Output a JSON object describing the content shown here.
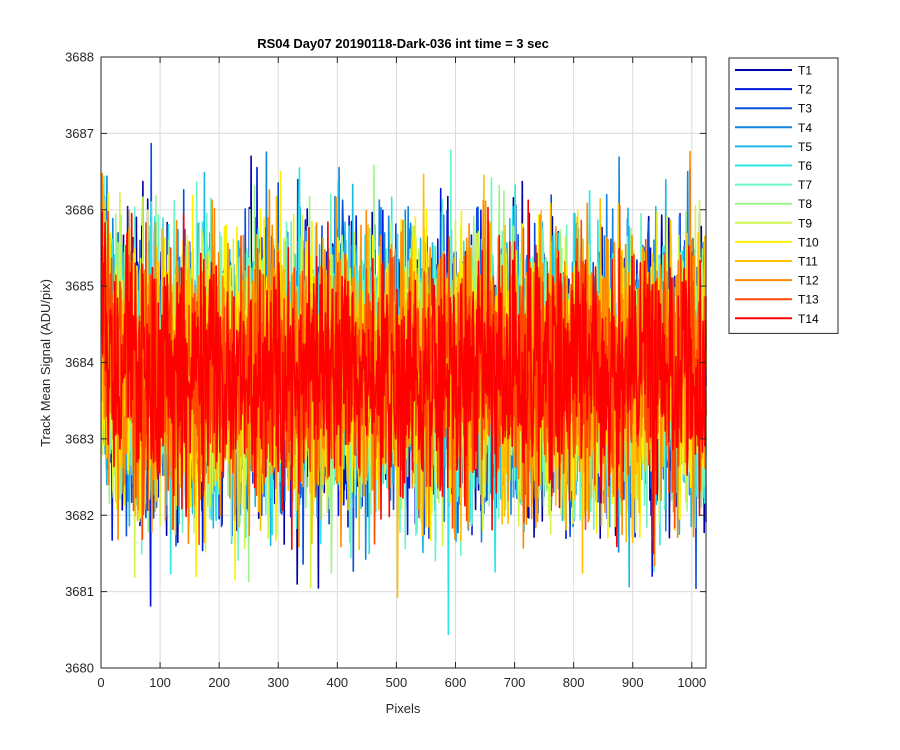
{
  "chart_data": {
    "type": "line",
    "title": "RS04 Day07 20190118-Dark-036 int time = 3 sec",
    "xlabel": "Pixels",
    "ylabel": "Track Mean Signal (ADU/pix)",
    "xlim": [
      0,
      1024
    ],
    "ylim": [
      3680,
      3688
    ],
    "xticks": [
      0,
      100,
      200,
      300,
      400,
      500,
      600,
      700,
      800,
      900,
      1000
    ],
    "yticks": [
      3680,
      3681,
      3682,
      3683,
      3684,
      3685,
      3686,
      3687,
      3688
    ],
    "grid": true,
    "legend_position": "outside-top-right",
    "x_range": [
      1,
      1024
    ],
    "series_mean": 3683.85,
    "series_spread": 0.9,
    "series": [
      {
        "name": "T1",
        "color": "#0000a6"
      },
      {
        "name": "T2",
        "color": "#0018e0"
      },
      {
        "name": "T3",
        "color": "#0a4ede"
      },
      {
        "name": "T4",
        "color": "#1084de"
      },
      {
        "name": "T5",
        "color": "#18b8e8"
      },
      {
        "name": "T6",
        "color": "#2be6e6"
      },
      {
        "name": "T7",
        "color": "#6af5c8"
      },
      {
        "name": "T8",
        "color": "#9df58a"
      },
      {
        "name": "T9",
        "color": "#d0f548"
      },
      {
        "name": "T10",
        "color": "#fff000"
      },
      {
        "name": "T11",
        "color": "#ffc000"
      },
      {
        "name": "T12",
        "color": "#ff8c00"
      },
      {
        "name": "T13",
        "color": "#ff4800"
      },
      {
        "name": "T14",
        "color": "#ff0000"
      }
    ]
  }
}
